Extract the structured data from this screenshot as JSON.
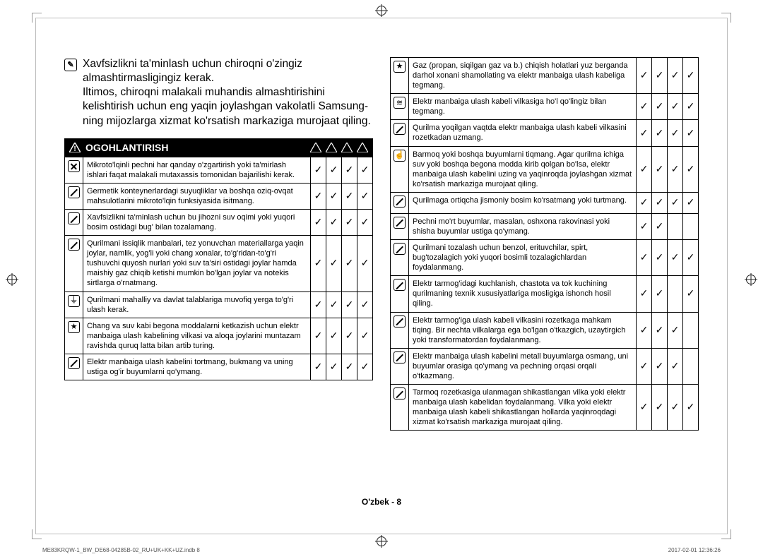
{
  "intro": {
    "line1": "Xavfsizlikni ta'minlash uchun chiroqni o'zingiz almashtirmasligingiz kerak.",
    "line2": "Iltimos, chiroqni malakali muhandis almashtirishini kelishtirish uchun eng yaqin joylashgan vakolatli Samsung-ning mijozlarga xizmat ko'rsatish markaziga murojaat qiling."
  },
  "warning_title": "OGOHLANTIRISH",
  "left_rows": [
    {
      "icon": "x",
      "text": "Mikroto'lqinli pechni har qanday o'zgartirish yoki ta'mirlash ishlari faqat malakali mutaxassis tomonidan bajarilishi kerak.",
      "checks": [
        true,
        true,
        true,
        true
      ]
    },
    {
      "icon": "slash",
      "text": "Germetik konteynerlardagi suyuqliklar va boshqa oziq-ovqat mahsulotlarini mikroto'lqin funksiyasida isitmang.",
      "checks": [
        true,
        true,
        true,
        true
      ]
    },
    {
      "icon": "slash",
      "text": "Xavfsizlikni ta'minlash uchun bu jihozni suv oqimi yoki yuqori bosim ostidagi bug' bilan tozalamang.",
      "checks": [
        true,
        true,
        true,
        true
      ]
    },
    {
      "icon": "slash",
      "text": "Qurilmani issiqlik manbalari, tez yonuvchan materiallarga yaqin joylar, namlik, yog'li yoki chang xonalar, to'g'ridan-to'g'ri tushuvchi quyosh nurlari yoki suv ta'siri ostidagi joylar hamda maishiy gaz chiqib ketishi mumkin bo'lgan joylar va notekis sirtlarga o'rnatmang.",
      "checks": [
        true,
        true,
        true,
        true
      ]
    },
    {
      "icon": "ground",
      "text": "Qurilmani mahalliy va davlat talablariga muvofiq yerga to'g'ri ulash kerak.",
      "checks": [
        true,
        true,
        true,
        true
      ]
    },
    {
      "icon": "star",
      "text": "Chang va suv kabi begona moddalarni ketkazish uchun elektr manbaiga ulash kabelining vilkasi va aloqa joylarini muntazam ravishda quruq latta bilan artib turing.",
      "checks": [
        true,
        true,
        true,
        true
      ]
    },
    {
      "icon": "slash",
      "text": "Elektr manbaiga ulash kabelini tortmang, bukmang va uning ustiga og'ir buyumlarni qo'ymang.",
      "checks": [
        true,
        true,
        true,
        true
      ]
    }
  ],
  "right_rows": [
    {
      "icon": "star",
      "text": "Gaz (propan, siqilgan gaz va b.) chiqish holatlari yuz berganda darhol xonani shamollating va elektr manbaiga ulash kabeliga tegmang.",
      "checks": [
        true,
        true,
        true,
        true
      ]
    },
    {
      "icon": "wave",
      "text": "Elektr manbaiga ulash kabeli vilkasiga ho'l qo'lingiz bilan tegmang.",
      "checks": [
        true,
        true,
        true,
        true
      ]
    },
    {
      "icon": "slash",
      "text": "Qurilma yoqilgan vaqtda elektr manbaiga ulash kabeli vilkasini rozetkadan uzmang.",
      "checks": [
        true,
        true,
        true,
        true
      ]
    },
    {
      "icon": "hand",
      "text": "Barmoq yoki boshqa buyumlarni tiqmang. Agar qurilma ichiga suv yoki boshqa begona modda kirib qolgan bo'lsa, elektr manbaiga ulash kabelini uzing va yaqinroqda joylashgan xizmat ko'rsatish markaziga murojaat qiling.",
      "checks": [
        true,
        true,
        true,
        true
      ]
    },
    {
      "icon": "slash",
      "text": "Qurilmaga ortiqcha jismoniy bosim ko'rsatmang yoki turtmang.",
      "checks": [
        true,
        true,
        true,
        true
      ]
    },
    {
      "icon": "slash",
      "text": "Pechni mo'rt buyumlar, masalan, oshxona rakovinasi yoki shisha buyumlar ustiga qo'ymang.",
      "checks": [
        true,
        true,
        false,
        false
      ]
    },
    {
      "icon": "slash",
      "text": "Qurilmani tozalash uchun benzol, erituvchilar, spirt, bug'tozalagich yoki yuqori bosimli tozalagichlardan foydalanmang.",
      "checks": [
        true,
        true,
        true,
        true
      ]
    },
    {
      "icon": "slash",
      "text": "Elektr tarmog'idagi kuchlanish, chastota va tok kuchining qurilmaning texnik xususiyatlariga mosligiga ishonch hosil qiling.",
      "checks": [
        true,
        true,
        false,
        true
      ]
    },
    {
      "icon": "slash",
      "text": "Elektr tarmog'iga ulash kabeli vilkasini rozetkaga mahkam tiqing. Bir nechta vilkalarga ega bo'lgan o'tkazgich, uzaytirgich yoki transformatordan foydalanmang.",
      "checks": [
        true,
        true,
        true,
        false
      ]
    },
    {
      "icon": "slash",
      "text": "Elektr manbaiga ulash kabelini metall buyumlarga osmang, uni buyumlar orasiga qo'ymang va pechning orqasi orqali o'tkazmang.",
      "checks": [
        true,
        true,
        true,
        false
      ]
    },
    {
      "icon": "slash",
      "text": "Tarmoq rozetkasiga ulanmagan shikastlangan vilka yoki elektr manbaiga ulash kabelidan foydalanmang. Vilka yoki elektr manbaiga ulash kabeli shikastlangan hollarda yaqinroqdagi xizmat ko'rsatish markaziga murojaat qiling.",
      "checks": [
        true,
        true,
        true,
        true
      ]
    }
  ],
  "footer": {
    "lang": "O'zbek - 8",
    "left": "ME83KRQW-1_BW_DE68-04285B-02_RU+UK+KK+UZ.indb   8",
    "right": "2017-02-01   12:36:26"
  }
}
